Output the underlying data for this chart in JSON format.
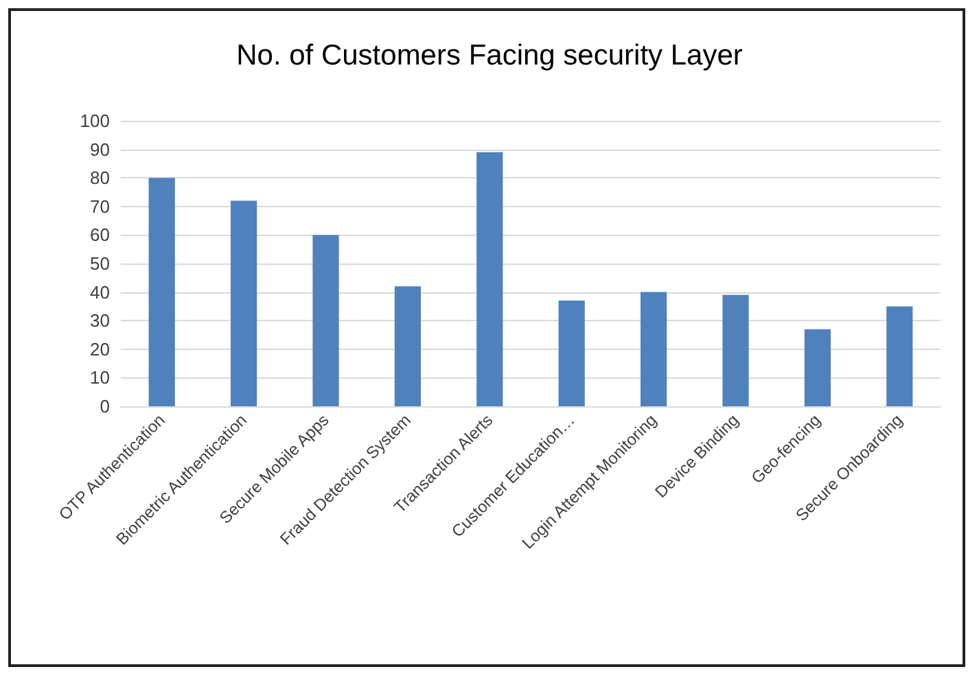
{
  "chart_data": {
    "type": "bar",
    "title": "No. of Customers Facing security Layer",
    "categories": [
      "OTP Authentication",
      "Biometric Authentication",
      "Secure Mobile Apps",
      "Fraud Detection System",
      "Transaction Alerts",
      "Customer Education…",
      "Login Attempt Monitoring",
      "Device Binding",
      "Geo-fencing",
      "Secure Onboarding"
    ],
    "values": [
      80,
      72,
      60,
      42,
      89,
      37,
      40,
      39,
      27,
      35
    ],
    "color": "#4f81bd",
    "ylim": [
      0,
      100
    ],
    "yticks": [
      0,
      10,
      20,
      30,
      40,
      50,
      60,
      70,
      80,
      90,
      100
    ],
    "grid": "y"
  }
}
